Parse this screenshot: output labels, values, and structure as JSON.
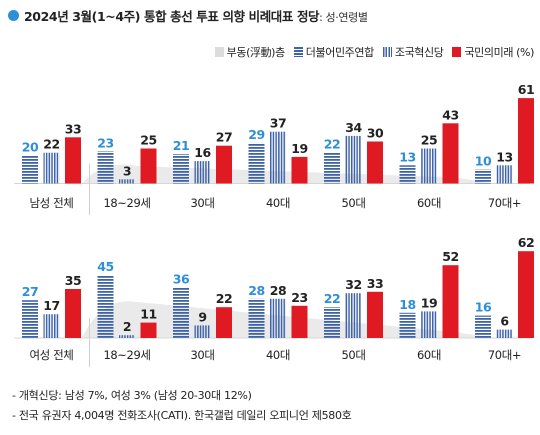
{
  "title": "2024년 3월(1~4주) 통합 총선 투표 의향 비례대표 정당",
  "title_sub": ": 성·연령별",
  "legend": [
    {
      "label": "부동(浮動)층",
      "key": "floating"
    },
    {
      "label": "더불어민주연합",
      "key": "minju"
    },
    {
      "label": "조국혁신당",
      "key": "joguk"
    },
    {
      "label": "국민의미래 (%)",
      "key": "ppp"
    }
  ],
  "colors": {
    "minju": "#3f63a9",
    "joguk": "#3f63a9",
    "ppp": "#e01a22",
    "floating": "#dcdcdc",
    "value_label_blue": "#2e8fd6",
    "value_label_dark": "#222222"
  },
  "chart_data": [
    {
      "type": "bar",
      "panel": "male",
      "categories": [
        "남성 전체",
        "18~29세",
        "30대",
        "40대",
        "50대",
        "60대",
        "70대+"
      ],
      "series": [
        {
          "name": "더불어민주연합",
          "values": [
            20,
            23,
            21,
            29,
            22,
            13,
            10
          ]
        },
        {
          "name": "조국혁신당",
          "values": [
            22,
            3,
            16,
            37,
            34,
            25,
            13
          ]
        },
        {
          "name": "국민의미래 (%)",
          "values": [
            33,
            25,
            27,
            19,
            30,
            43,
            61
          ]
        }
      ],
      "floating_area": "shown"
    },
    {
      "type": "bar",
      "panel": "female",
      "categories": [
        "여성 전체",
        "18~29세",
        "30대",
        "40대",
        "50대",
        "60대",
        "70대+"
      ],
      "series": [
        {
          "name": "더불어민주연합",
          "values": [
            27,
            45,
            36,
            28,
            22,
            18,
            16
          ]
        },
        {
          "name": "조국혁신당",
          "values": [
            17,
            2,
            9,
            28,
            32,
            19,
            6
          ]
        },
        {
          "name": "국민의미래 (%)",
          "values": [
            35,
            11,
            22,
            23,
            33,
            52,
            62
          ]
        }
      ],
      "floating_area": "shown"
    }
  ],
  "footnotes": [
    "- 개혁신당: 남성 7%, 여성 3% (남성 20-30대 12%)",
    "- 전국 유권자 4,004명 전화조사(CATI). 한국갤럽 데일리 오피니언 제580호"
  ]
}
